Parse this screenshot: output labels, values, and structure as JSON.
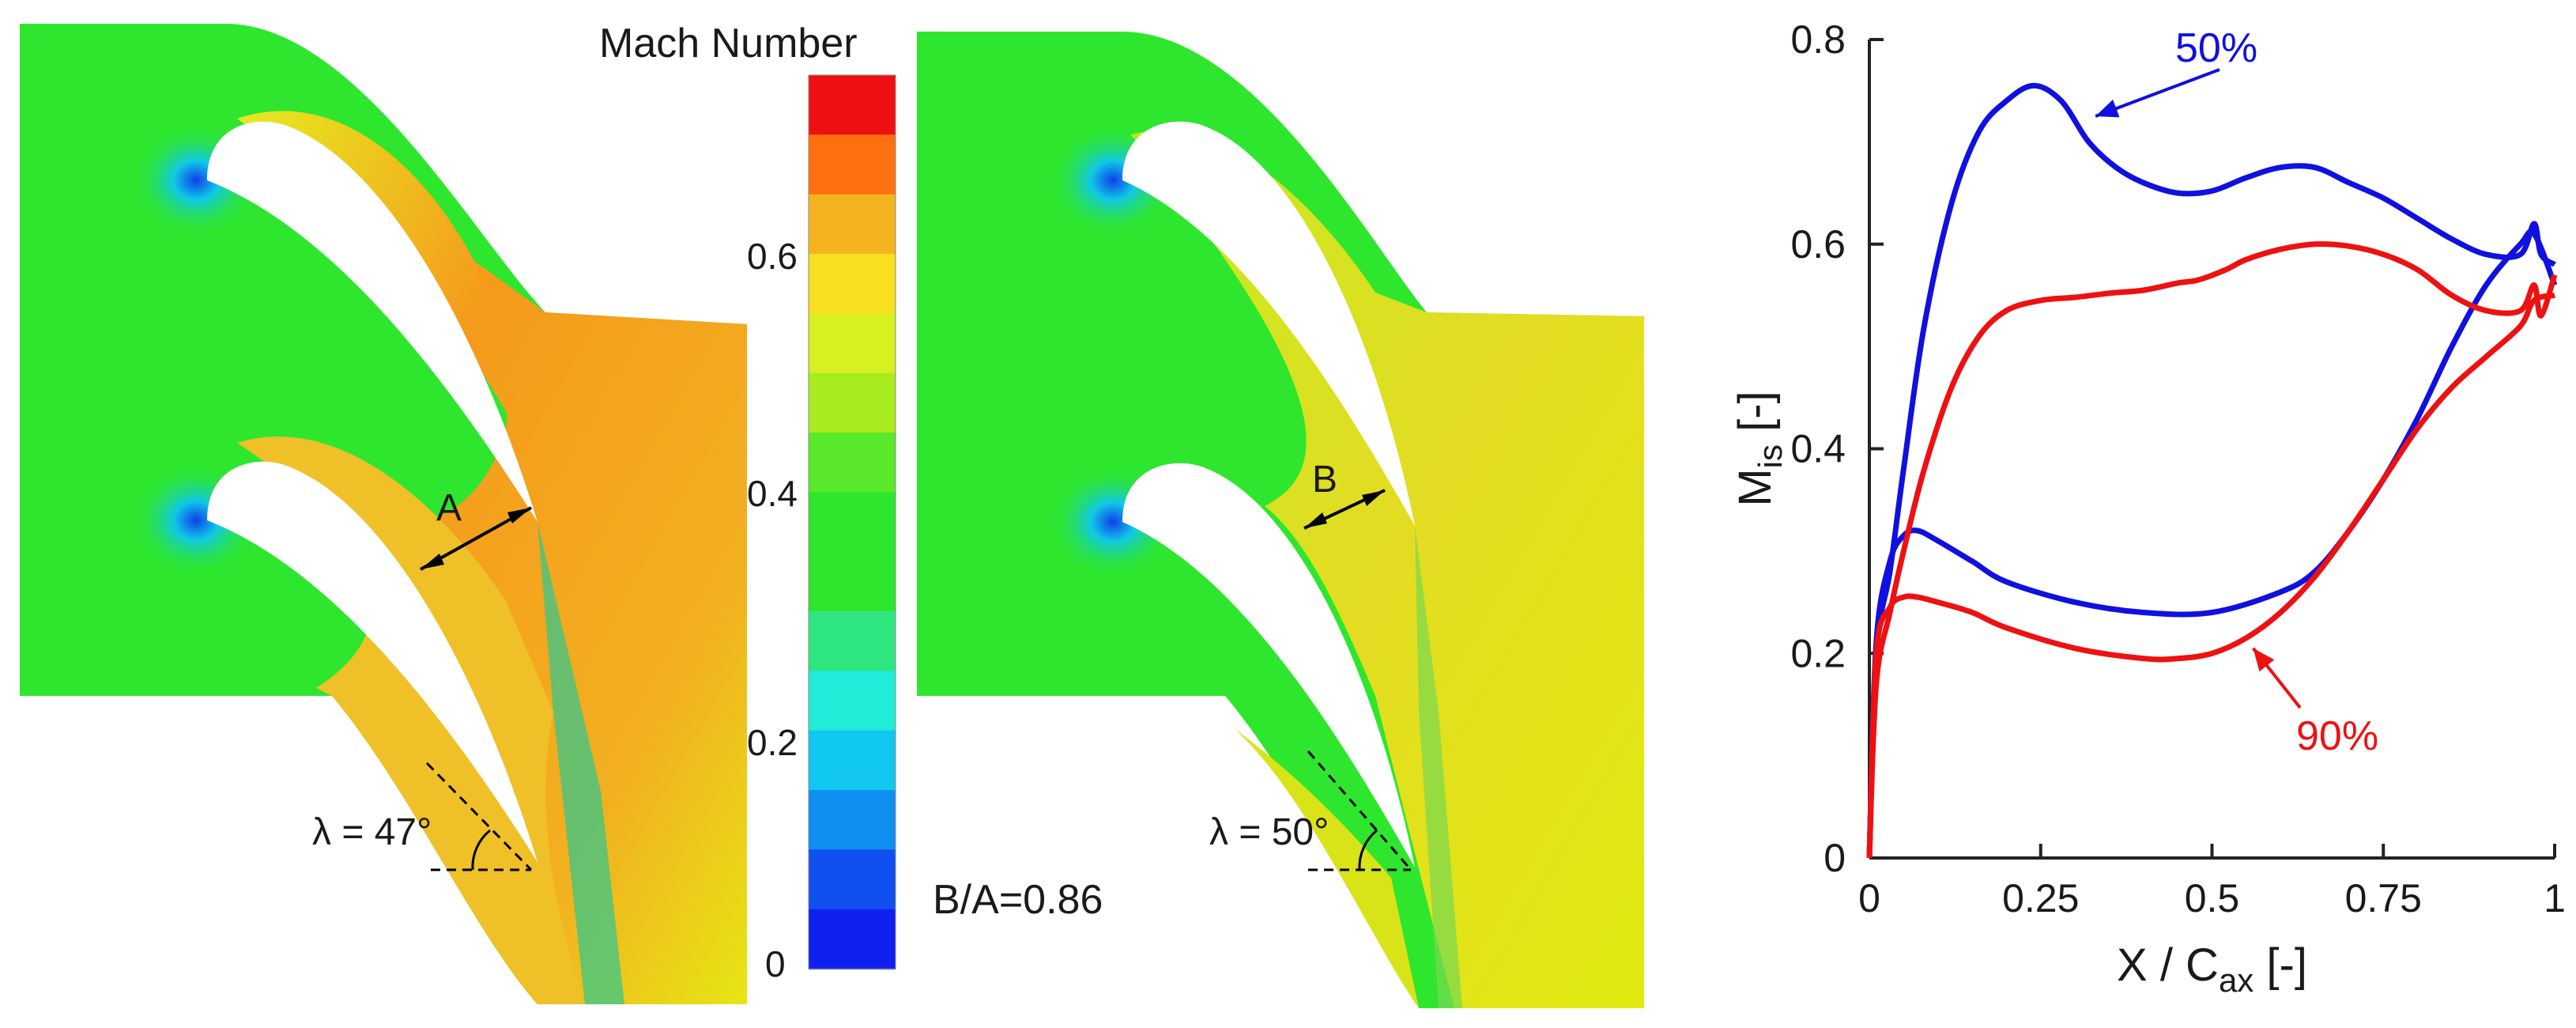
{
  "colorbar": {
    "title": "Mach Number",
    "ticks": [
      "0.6",
      "0.4",
      "0.2",
      "0"
    ],
    "tick_values": [
      0.6,
      0.4,
      0.2,
      0
    ],
    "range": [
      0,
      0.75
    ]
  },
  "contour_left": {
    "passage_label": "A",
    "angle_label": "λ = 47°"
  },
  "contour_right": {
    "passage_label": "B",
    "angle_label": "λ = 50°"
  },
  "ratio_label": "B/A=0.86",
  "colors": {
    "series_50": "#1010e0",
    "series_90": "#ee1111",
    "green_field": "#2ee62e",
    "orange_field": "#f2a020",
    "yellow_field": "#e0ea10"
  },
  "chart_data": {
    "type": "line",
    "xlabel": "X / C",
    "xlabel_sub": "ax",
    "xlabel_unit": " [-]",
    "ylabel": "M",
    "ylabel_sub": "is",
    "ylabel_unit": " [-]",
    "xlim": [
      0,
      1
    ],
    "ylim": [
      0,
      0.8
    ],
    "xticks": [
      0,
      0.25,
      0.5,
      0.75,
      1
    ],
    "xtick_labels": [
      "0",
      "0.25",
      "0.5",
      "0.75",
      "1"
    ],
    "yticks": [
      0,
      0.2,
      0.4,
      0.6,
      0.8
    ],
    "ytick_labels": [
      "0",
      "0.2",
      "0.4",
      "0.6",
      "0.8"
    ],
    "grid": false,
    "series": [
      {
        "name": "50%",
        "color": "#1010e0",
        "suction_side": [
          [
            0,
            0
          ],
          [
            0.01,
            0.2
          ],
          [
            0.03,
            0.28
          ],
          [
            0.05,
            0.38
          ],
          [
            0.08,
            0.52
          ],
          [
            0.12,
            0.64
          ],
          [
            0.16,
            0.71
          ],
          [
            0.2,
            0.74
          ],
          [
            0.24,
            0.755
          ],
          [
            0.28,
            0.74
          ],
          [
            0.32,
            0.7
          ],
          [
            0.36,
            0.675
          ],
          [
            0.4,
            0.66
          ],
          [
            0.45,
            0.65
          ],
          [
            0.5,
            0.652
          ],
          [
            0.55,
            0.665
          ],
          [
            0.6,
            0.675
          ],
          [
            0.65,
            0.675
          ],
          [
            0.7,
            0.66
          ],
          [
            0.75,
            0.645
          ],
          [
            0.8,
            0.625
          ],
          [
            0.85,
            0.605
          ],
          [
            0.9,
            0.59
          ],
          [
            0.95,
            0.59
          ],
          [
            0.97,
            0.62
          ],
          [
            0.98,
            0.59
          ],
          [
            1.0,
            0.58
          ]
        ],
        "pressure_side": [
          [
            0,
            0
          ],
          [
            0.01,
            0.21
          ],
          [
            0.03,
            0.29
          ],
          [
            0.05,
            0.315
          ],
          [
            0.07,
            0.32
          ],
          [
            0.1,
            0.31
          ],
          [
            0.15,
            0.29
          ],
          [
            0.2,
            0.27
          ],
          [
            0.3,
            0.25
          ],
          [
            0.4,
            0.24
          ],
          [
            0.5,
            0.24
          ],
          [
            0.6,
            0.26
          ],
          [
            0.65,
            0.28
          ],
          [
            0.7,
            0.32
          ],
          [
            0.75,
            0.37
          ],
          [
            0.8,
            0.43
          ],
          [
            0.85,
            0.5
          ],
          [
            0.9,
            0.56
          ],
          [
            0.95,
            0.6
          ],
          [
            0.97,
            0.61
          ],
          [
            1.0,
            0.56
          ]
        ]
      },
      {
        "name": "90%",
        "color": "#ee1111",
        "suction_side": [
          [
            0,
            0
          ],
          [
            0.01,
            0.17
          ],
          [
            0.03,
            0.24
          ],
          [
            0.05,
            0.3
          ],
          [
            0.08,
            0.38
          ],
          [
            0.12,
            0.46
          ],
          [
            0.16,
            0.51
          ],
          [
            0.2,
            0.535
          ],
          [
            0.25,
            0.545
          ],
          [
            0.3,
            0.548
          ],
          [
            0.35,
            0.552
          ],
          [
            0.4,
            0.555
          ],
          [
            0.45,
            0.562
          ],
          [
            0.48,
            0.565
          ],
          [
            0.52,
            0.575
          ],
          [
            0.55,
            0.585
          ],
          [
            0.6,
            0.595
          ],
          [
            0.65,
            0.6
          ],
          [
            0.7,
            0.598
          ],
          [
            0.75,
            0.59
          ],
          [
            0.8,
            0.575
          ],
          [
            0.85,
            0.55
          ],
          [
            0.9,
            0.535
          ],
          [
            0.95,
            0.535
          ],
          [
            0.97,
            0.56
          ],
          [
            0.98,
            0.53
          ],
          [
            1.0,
            0.57
          ]
        ],
        "pressure_side": [
          [
            0,
            0
          ],
          [
            0.01,
            0.2
          ],
          [
            0.03,
            0.245
          ],
          [
            0.05,
            0.255
          ],
          [
            0.07,
            0.255
          ],
          [
            0.1,
            0.25
          ],
          [
            0.15,
            0.24
          ],
          [
            0.2,
            0.225
          ],
          [
            0.3,
            0.205
          ],
          [
            0.4,
            0.195
          ],
          [
            0.45,
            0.195
          ],
          [
            0.5,
            0.2
          ],
          [
            0.55,
            0.215
          ],
          [
            0.6,
            0.24
          ],
          [
            0.65,
            0.275
          ],
          [
            0.7,
            0.32
          ],
          [
            0.75,
            0.37
          ],
          [
            0.8,
            0.42
          ],
          [
            0.85,
            0.46
          ],
          [
            0.9,
            0.49
          ],
          [
            0.95,
            0.52
          ],
          [
            0.97,
            0.545
          ],
          [
            1.0,
            0.55
          ]
        ]
      }
    ],
    "annotations": [
      {
        "text": "50%",
        "series": "50%",
        "arrow_to": [
          0.33,
          0.725
        ]
      },
      {
        "text": "90%",
        "series": "90%",
        "arrow_to": [
          0.56,
          0.205
        ]
      }
    ]
  }
}
